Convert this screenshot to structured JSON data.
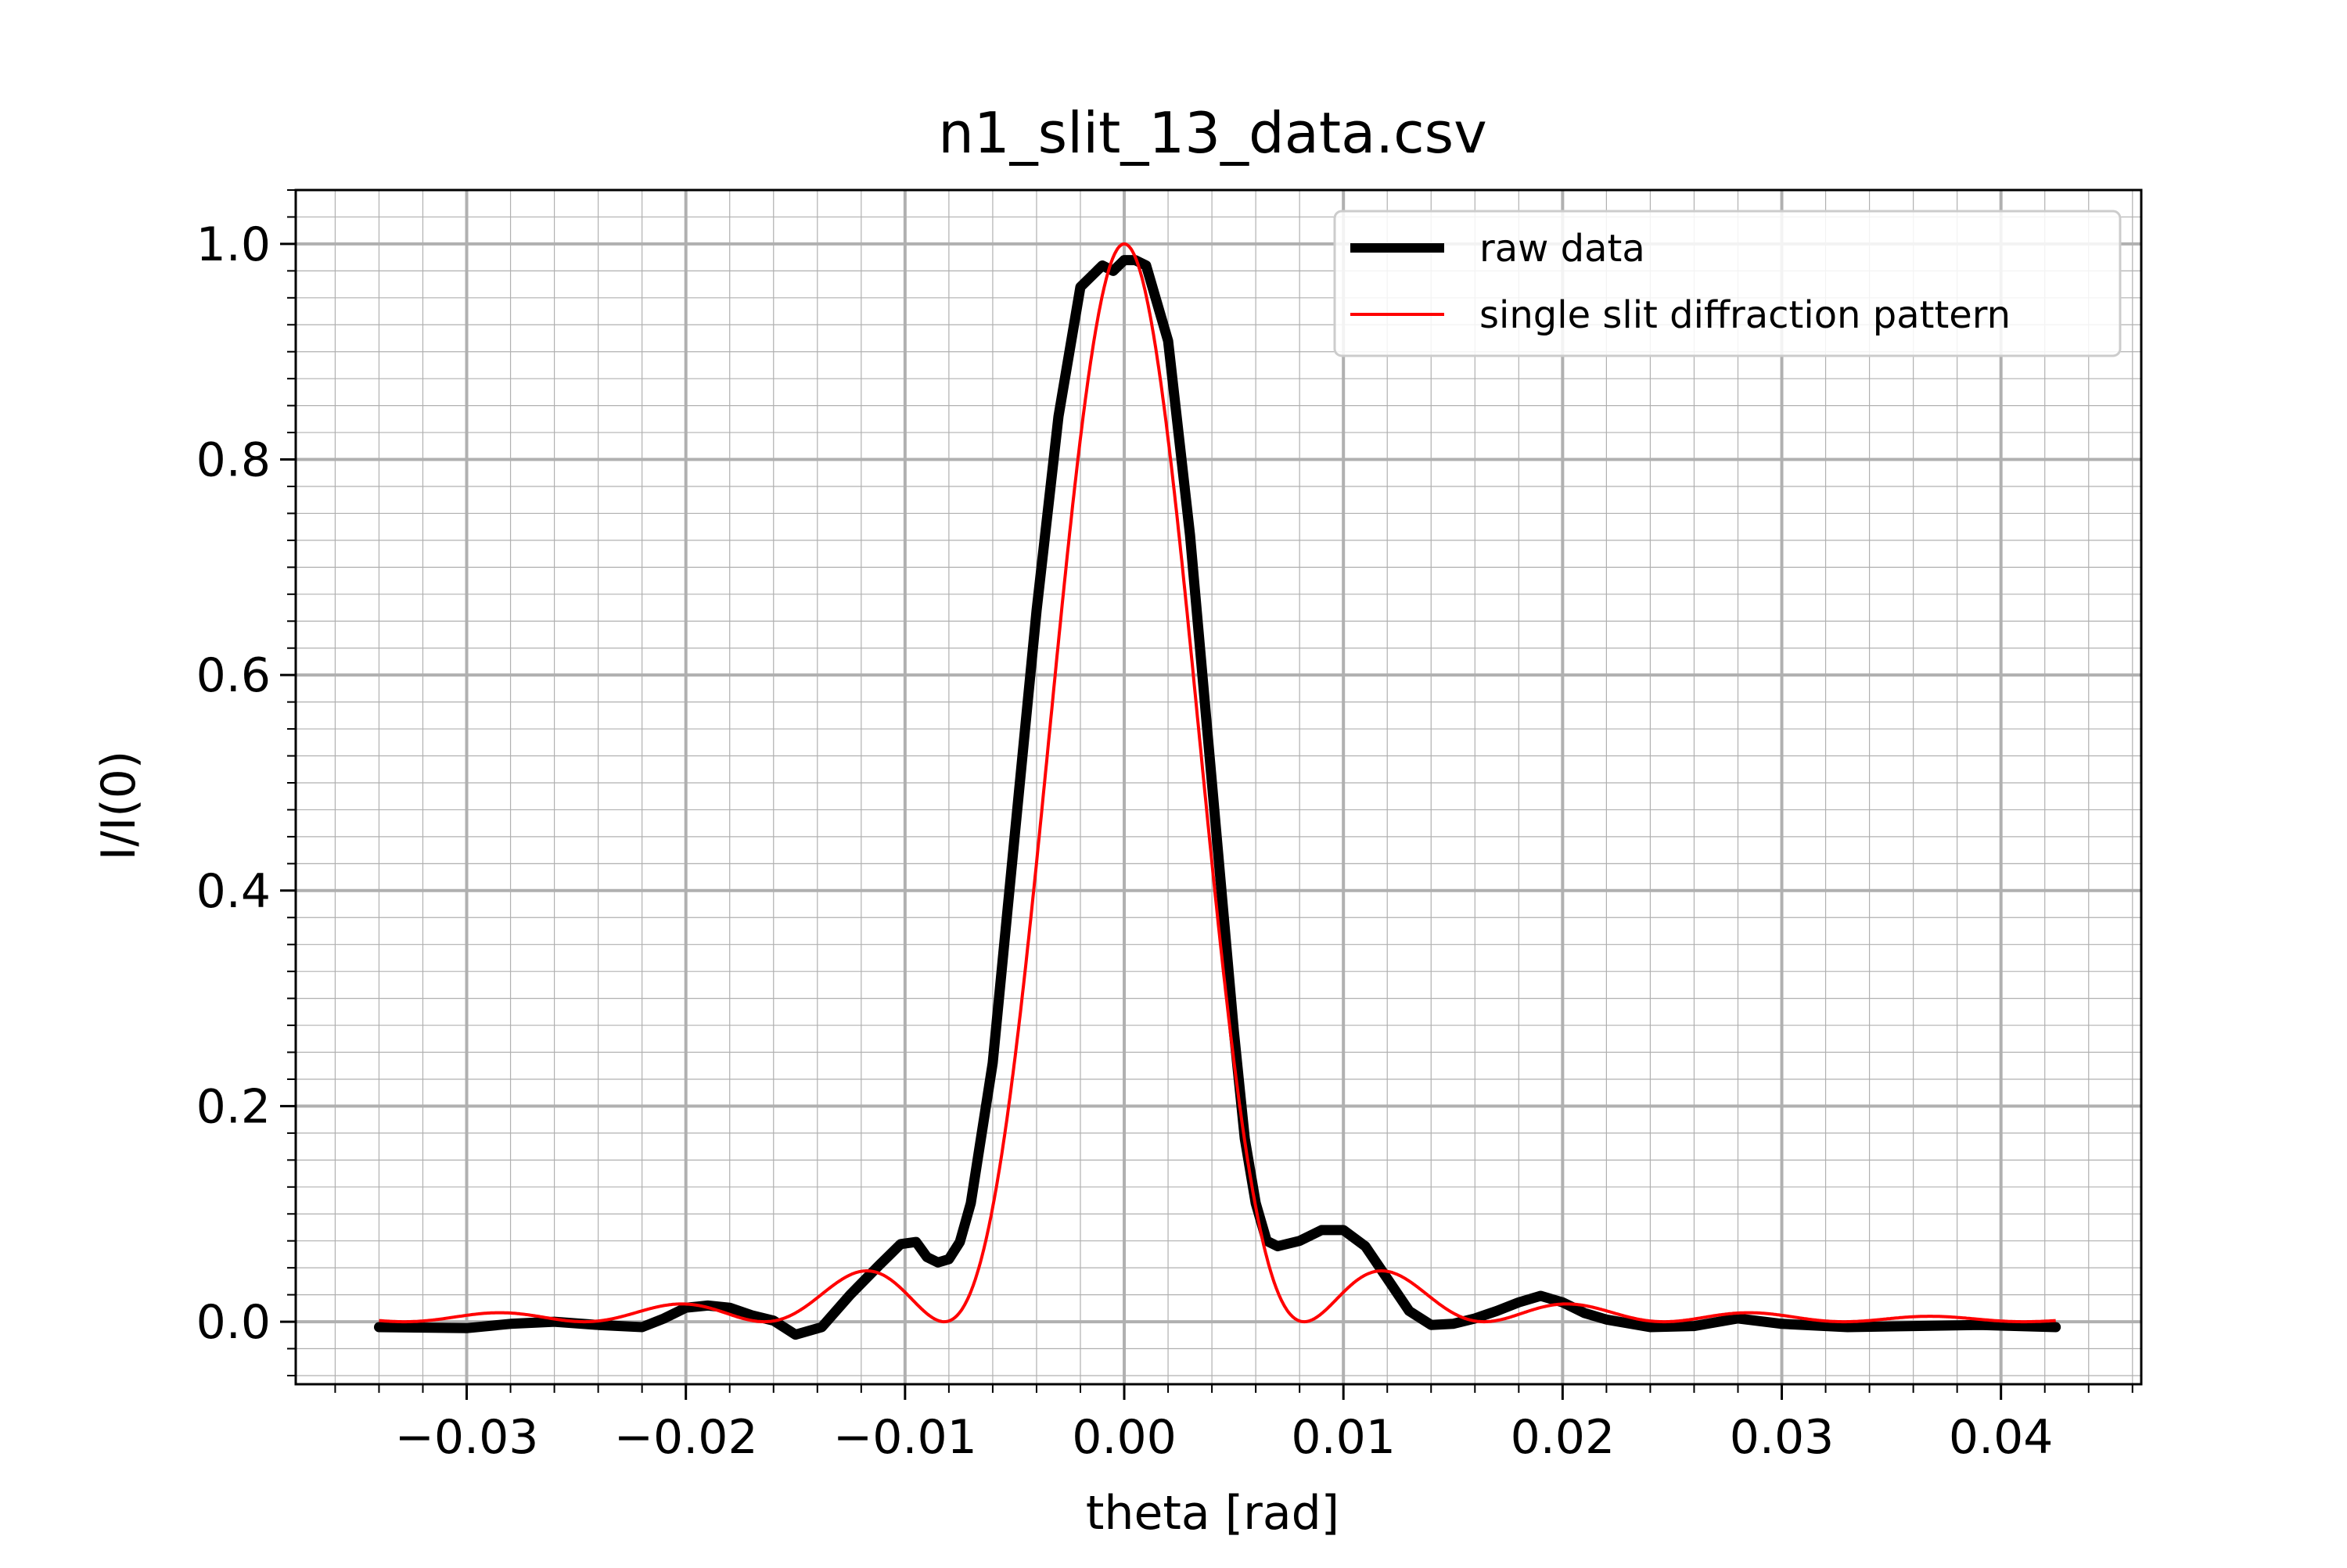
{
  "chart_data": {
    "type": "line",
    "title": "n1_slit_13_data.csv",
    "xlabel": "theta [rad]",
    "ylabel": "I/I(0)",
    "xlim": [
      -0.0378,
      0.0464
    ],
    "ylim": [
      -0.058,
      1.05
    ],
    "x_ticks": [
      -0.03,
      -0.02,
      -0.01,
      0.0,
      0.01,
      0.02,
      0.03,
      0.04
    ],
    "x_tick_labels": [
      "−0.03",
      "−0.02",
      "−0.01",
      "0.00",
      "0.01",
      "0.02",
      "0.03",
      "0.04"
    ],
    "y_ticks": [
      0.0,
      0.2,
      0.4,
      0.6,
      0.8,
      1.0
    ],
    "y_tick_labels": [
      "0.0",
      "0.2",
      "0.4",
      "0.6",
      "0.8",
      "1.0"
    ],
    "x_minor_step": 0.002,
    "y_minor_step": 0.025,
    "grid": {
      "major": true,
      "minor": true,
      "color": "#b0b0b0"
    },
    "legend": {
      "position": "top-right"
    },
    "series": [
      {
        "name": "raw data",
        "color": "#000000",
        "x": [
          -0.034,
          -0.03,
          -0.028,
          -0.026,
          -0.024,
          -0.022,
          -0.021,
          -0.02,
          -0.019,
          -0.018,
          -0.017,
          -0.016,
          -0.015,
          -0.0138,
          -0.0125,
          -0.0112,
          -0.0102,
          -0.0095,
          -0.009,
          -0.0085,
          -0.008,
          -0.0075,
          -0.007,
          -0.006,
          -0.005,
          -0.004,
          -0.003,
          -0.002,
          -0.001,
          -0.0005,
          0.0,
          0.0005,
          0.001,
          0.002,
          0.003,
          0.004,
          0.005,
          0.0055,
          0.006,
          0.0065,
          0.007,
          0.008,
          0.009,
          0.01,
          0.011,
          0.012,
          0.013,
          0.014,
          0.015,
          0.016,
          0.017,
          0.018,
          0.019,
          0.02,
          0.021,
          0.022,
          0.024,
          0.026,
          0.028,
          0.03,
          0.033,
          0.036,
          0.039,
          0.0425
        ],
        "y": [
          -0.005,
          -0.006,
          -0.002,
          0.0,
          -0.003,
          -0.005,
          0.003,
          0.013,
          0.015,
          0.013,
          0.006,
          0.001,
          -0.012,
          -0.005,
          0.025,
          0.052,
          0.072,
          0.074,
          0.06,
          0.055,
          0.058,
          0.074,
          0.11,
          0.24,
          0.45,
          0.66,
          0.84,
          0.96,
          0.98,
          0.975,
          0.985,
          0.985,
          0.98,
          0.91,
          0.73,
          0.5,
          0.27,
          0.17,
          0.11,
          0.075,
          0.07,
          0.075,
          0.085,
          0.085,
          0.07,
          0.04,
          0.01,
          -0.003,
          -0.002,
          0.003,
          0.01,
          0.018,
          0.024,
          0.018,
          0.008,
          0.002,
          -0.005,
          -0.004,
          0.003,
          -0.002,
          -0.005,
          -0.004,
          -0.003,
          -0.005
        ]
      },
      {
        "name": "single slit diffraction pattern",
        "color": "#ff0000",
        "model": "I/I(0) = sinc^2(theta / 0.00821), first minimum at 0.00821 rad",
        "first_min": 0.00821,
        "x_range": [
          -0.034,
          0.0425
        ]
      }
    ]
  }
}
